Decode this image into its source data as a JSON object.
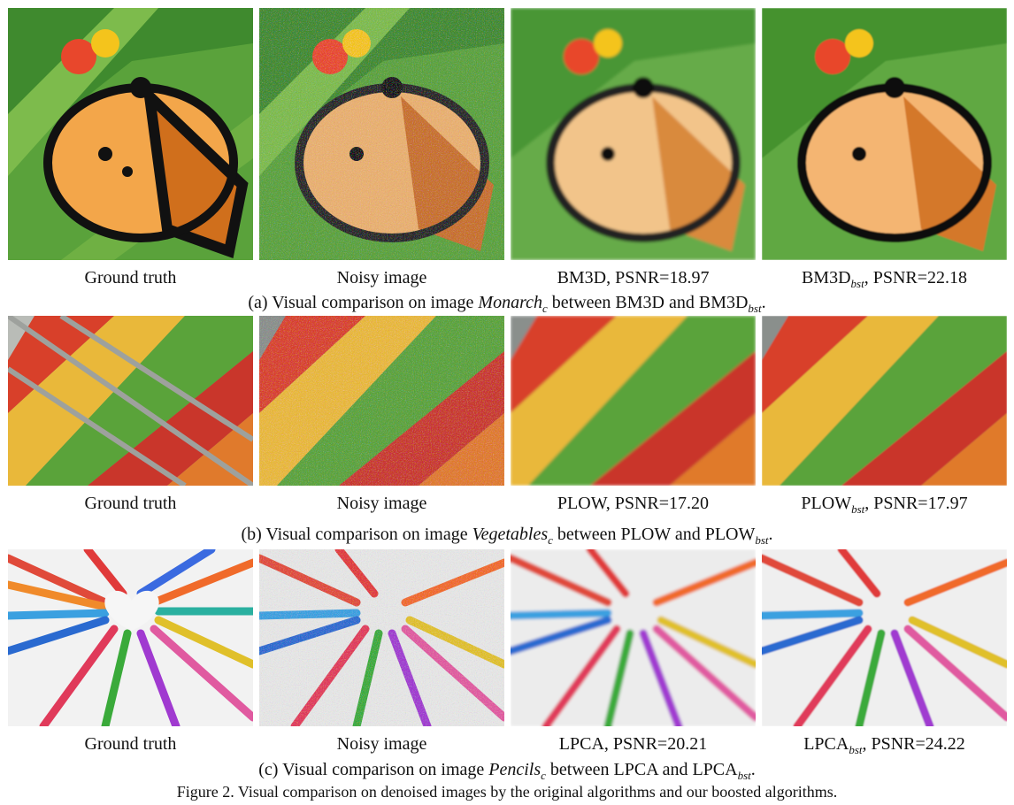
{
  "rows": [
    {
      "labels": [
        "Ground truth",
        "Noisy image",
        "BM3D, PSNR=18.97",
        "BM3D",
        "bst",
        ", PSNR=22.18"
      ],
      "caption": {
        "prefix": "(a) Visual comparison on image ",
        "image_name": "Monarch",
        "image_sub": "c",
        "middle": " between BM3D and BM3D",
        "method_sub": "bst",
        "suffix": "."
      }
    },
    {
      "labels": [
        "Ground truth",
        "Noisy image",
        "PLOW, PSNR=17.20",
        "PLOW",
        "bst",
        ", PSNR=17.97"
      ],
      "caption": {
        "prefix": "(b) Visual comparison on image ",
        "image_name": "Vegetables",
        "image_sub": "c",
        "middle": " between PLOW and PLOW",
        "method_sub": "bst",
        "suffix": "."
      }
    },
    {
      "labels": [
        "Ground truth",
        "Noisy image",
        "LPCA, PSNR=20.21",
        "LPCA",
        "bst",
        ", PSNR=24.22"
      ],
      "caption": {
        "prefix": "(c) Visual comparison on image ",
        "image_name": "Pencils",
        "image_sub": "c",
        "middle": " between LPCA and LPCA",
        "method_sub": "bst",
        "suffix": "."
      }
    }
  ],
  "figure_caption": "Figure 2. Visual comparison on denoised images by the original algorithms and our boosted algorithms."
}
